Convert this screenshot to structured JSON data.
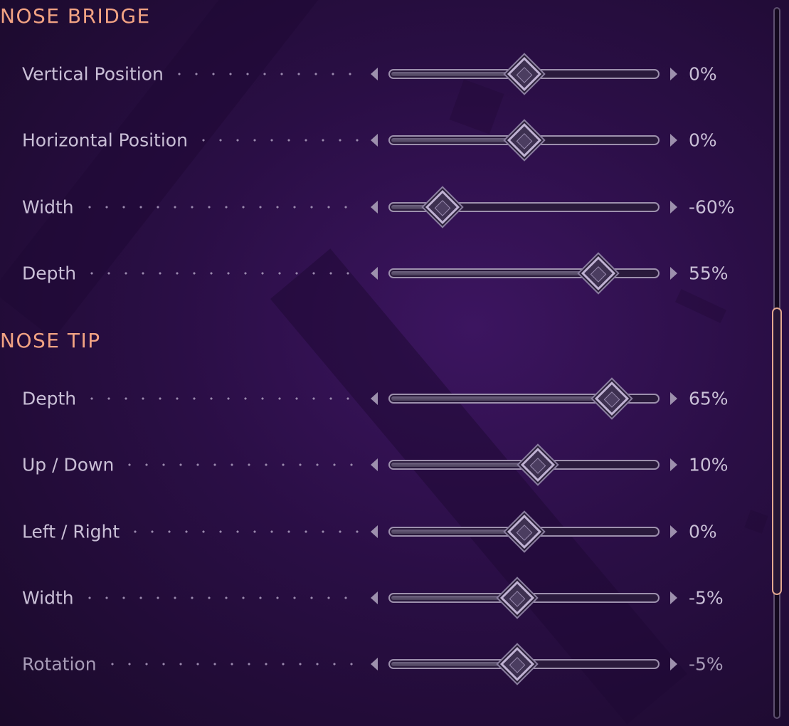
{
  "sections": [
    {
      "title": "NOSE BRIDGE",
      "sliders": [
        {
          "label": "Vertical Position",
          "value_text": "0%",
          "value": 0
        },
        {
          "label": "Horizontal Position",
          "value_text": "0%",
          "value": 0
        },
        {
          "label": "Width",
          "value_text": "-60%",
          "value": -60
        },
        {
          "label": "Depth",
          "value_text": "55%",
          "value": 55
        }
      ]
    },
    {
      "title": "NOSE TIP",
      "sliders": [
        {
          "label": "Depth",
          "value_text": "65%",
          "value": 65
        },
        {
          "label": "Up / Down",
          "value_text": "10%",
          "value": 10
        },
        {
          "label": "Left / Right",
          "value_text": "0%",
          "value": 0
        },
        {
          "label": "Width",
          "value_text": "-5%",
          "value": -5
        },
        {
          "label": "Rotation",
          "value_text": "-5%",
          "value": -5
        }
      ]
    }
  ],
  "slider_range": [
    -100,
    100
  ],
  "scrollbar_fraction": 0.43,
  "colors": {
    "section_title": "#f2a383",
    "label": "#c9bfd6",
    "scroll_thumb_border": "#e3a890"
  },
  "icons": {
    "decrease": "triangle-left",
    "increase": "triangle-right"
  }
}
